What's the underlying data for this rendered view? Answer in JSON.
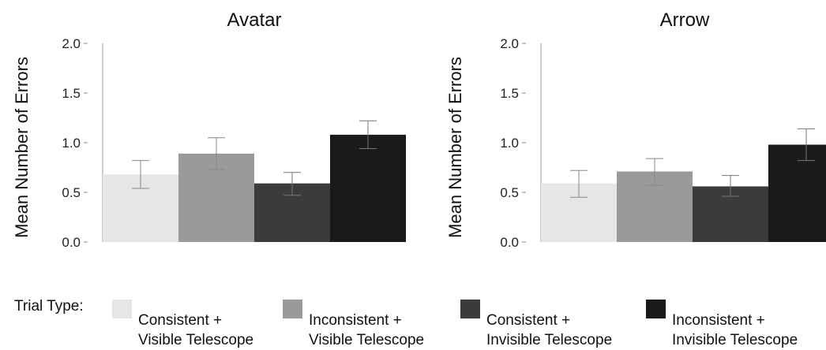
{
  "chart_data": [
    {
      "type": "bar",
      "title": "Avatar",
      "ylabel": "Mean Number of Errors",
      "ylim": [
        0,
        2.0
      ],
      "yticks": [
        "0.0",
        "0.5",
        "1.0",
        "1.5",
        "2.0"
      ],
      "grid": false,
      "categories": [
        "Consistent + Visible Telescope",
        "Inconsistent + Visible Telescope",
        "Consistent + Invisible Telescope",
        "Inconsistent + Invisible Telescope"
      ],
      "values": [
        0.68,
        0.89,
        0.59,
        1.08
      ],
      "error_low": [
        0.54,
        0.73,
        0.47,
        0.94
      ],
      "error_high": [
        0.82,
        1.05,
        0.7,
        1.22
      ]
    },
    {
      "type": "bar",
      "title": "Arrow",
      "ylabel": "Mean Number of Errors",
      "ylim": [
        0,
        2.0
      ],
      "yticks": [
        "0.0",
        "0.5",
        "1.0",
        "1.5",
        "2.0"
      ],
      "grid": false,
      "categories": [
        "Consistent + Visible Telescope",
        "Inconsistent + Visible Telescope",
        "Consistent + Invisible Telescope",
        "Inconsistent + Invisible Telescope"
      ],
      "values": [
        0.59,
        0.71,
        0.56,
        0.98
      ],
      "error_low": [
        0.45,
        0.57,
        0.46,
        0.82
      ],
      "error_high": [
        0.72,
        0.84,
        0.67,
        1.14
      ]
    }
  ],
  "legend": {
    "label": "Trial Type:",
    "position": "bottom",
    "items": [
      {
        "text": "Consistent +\nVisible Telescope",
        "color": "#e6e6e6"
      },
      {
        "text": "Inconsistent +\nVisible Telescope",
        "color": "#9a9a9a"
      },
      {
        "text": "Consistent +\nInvisible Telescope",
        "color": "#3b3b3b"
      },
      {
        "text": "Inconsistent +\nInvisible Telescope",
        "color": "#1a1a1a"
      }
    ]
  }
}
